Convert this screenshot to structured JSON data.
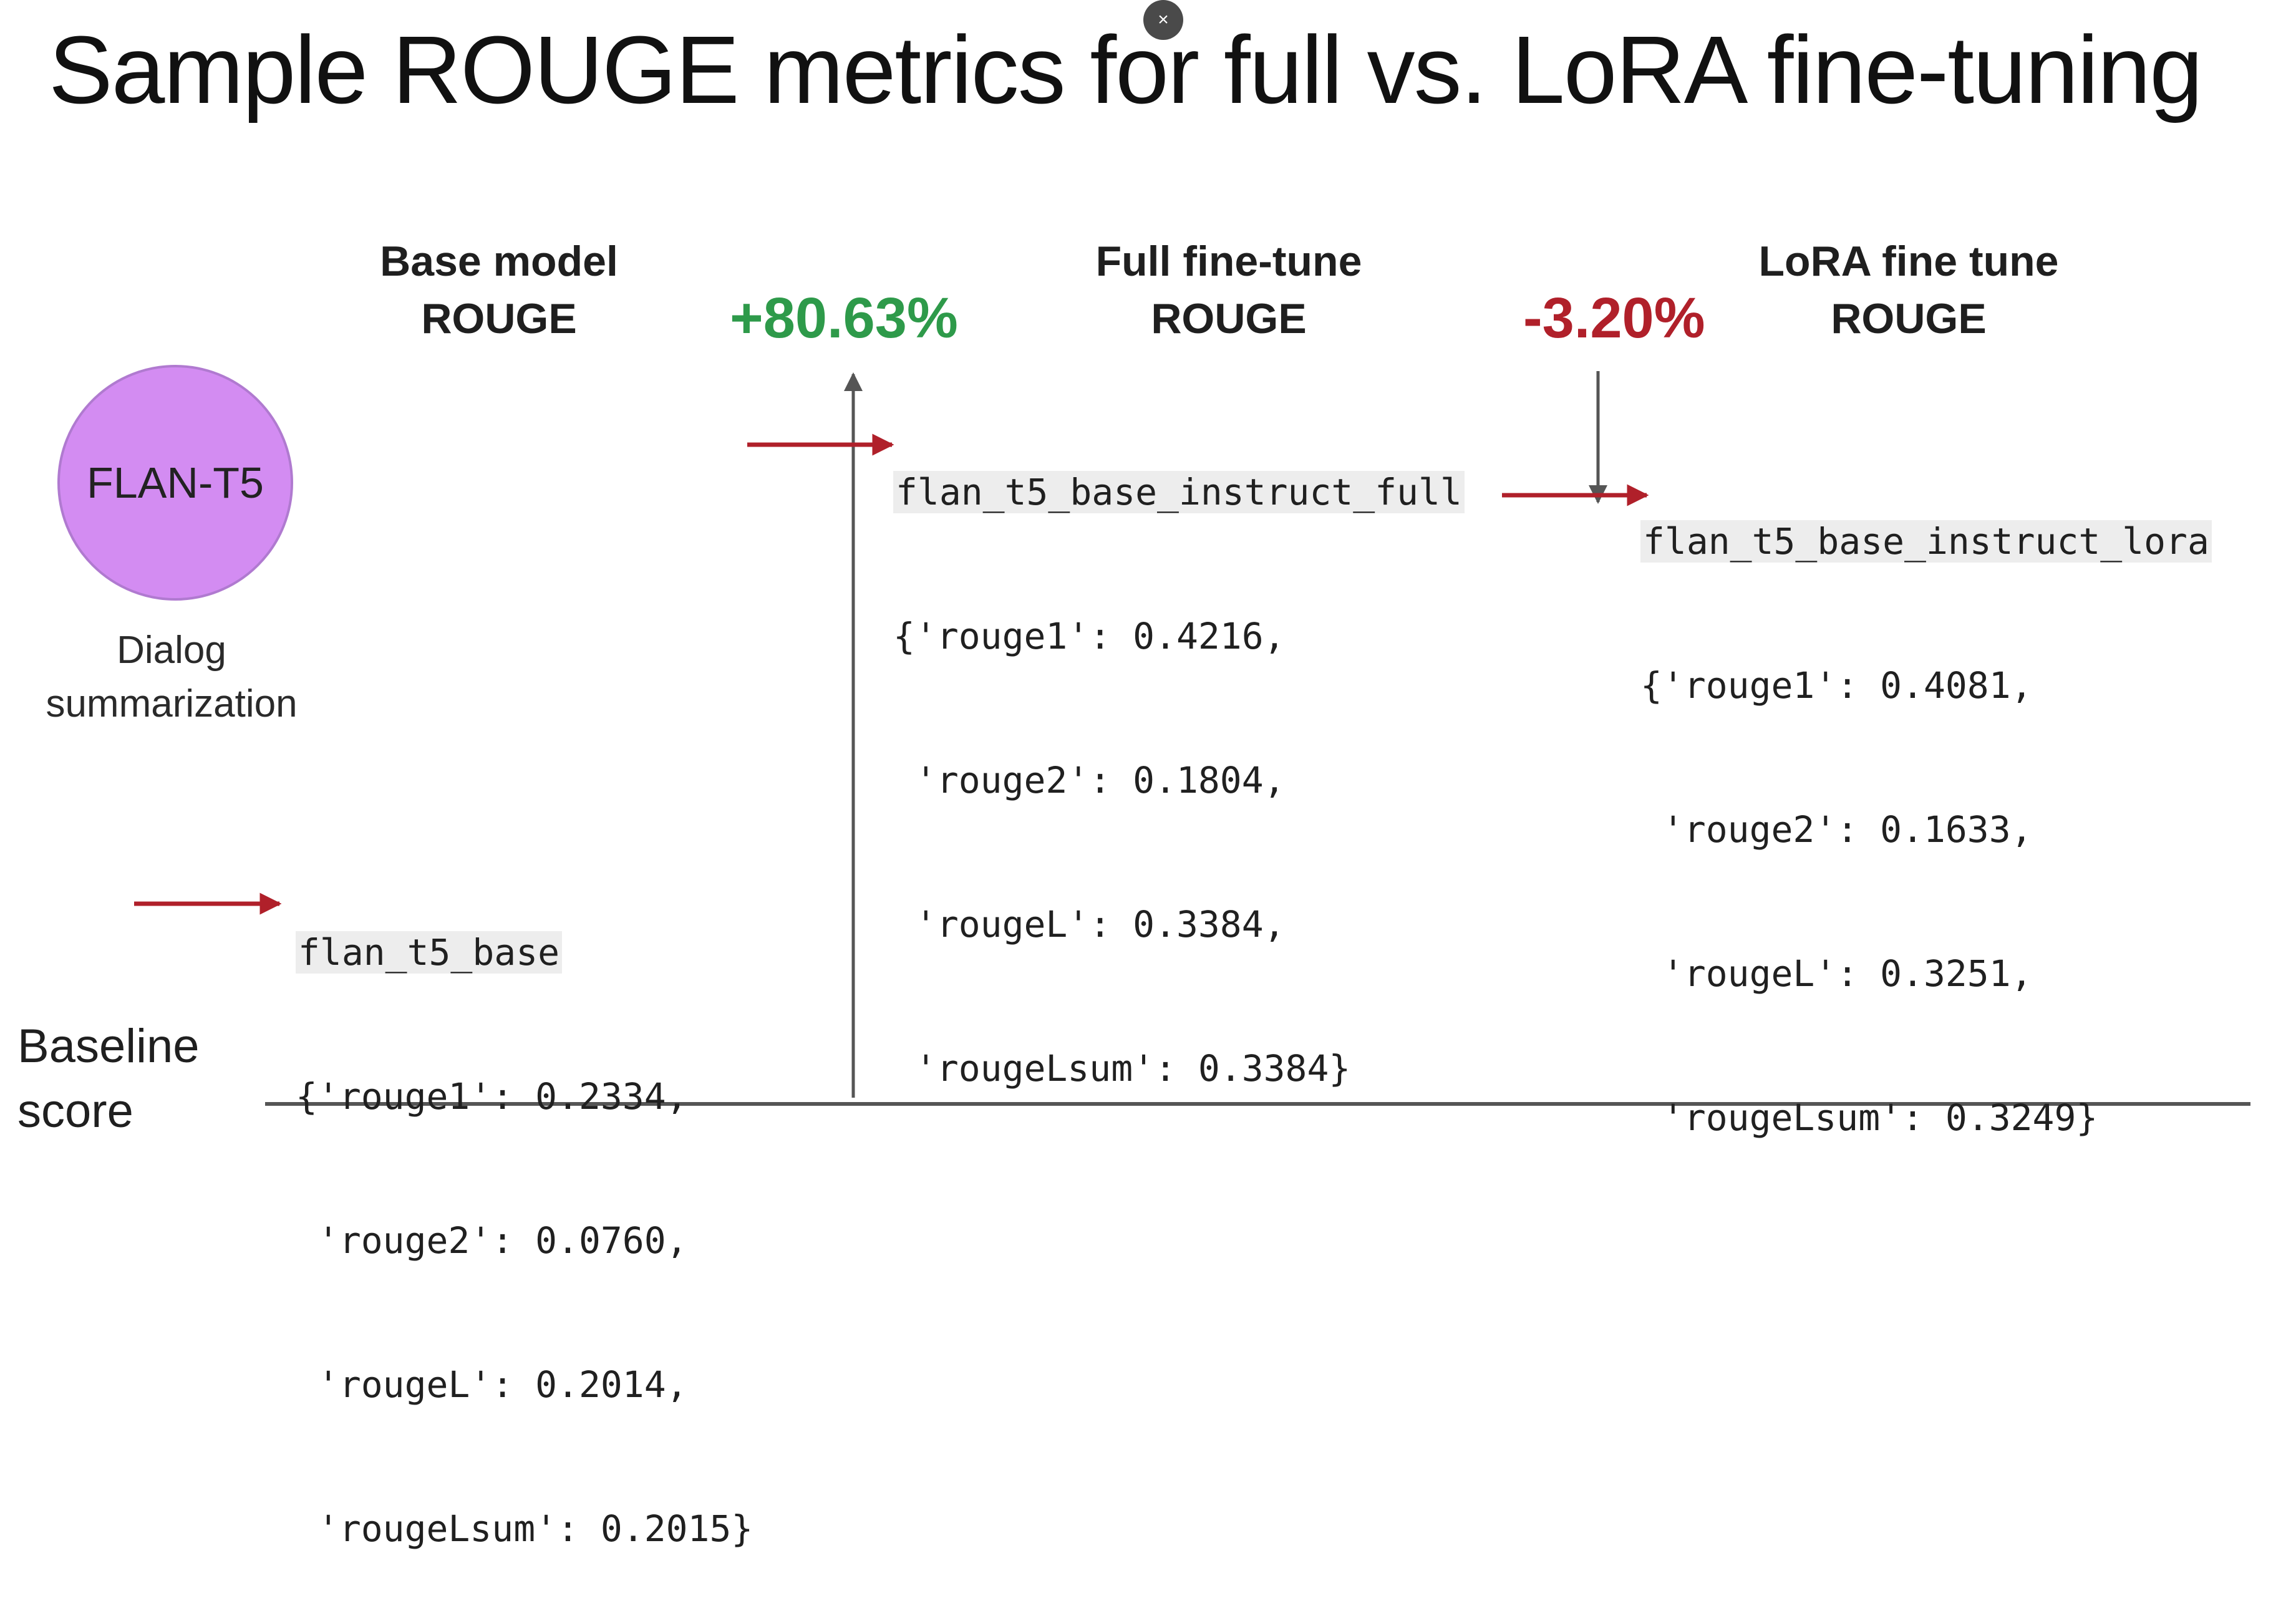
{
  "title": "Sample ROUGE metrics for full vs. LoRA fine-tuning",
  "close_button": {
    "glyph": "×"
  },
  "model": {
    "name": "FLAN-T5",
    "task": [
      "Dialog",
      "summarization"
    ],
    "color": "#d38cf2"
  },
  "columns": [
    {
      "heading": [
        "Base model",
        "ROUGE"
      ]
    },
    {
      "heading": [
        "Full fine-tune",
        "ROUGE"
      ]
    },
    {
      "heading": [
        "LoRA  fine tune",
        "ROUGE"
      ]
    }
  ],
  "changes": [
    {
      "label": "+80.63%",
      "color": "#2e9a4a"
    },
    {
      "label": "-3.20%",
      "color": "#b0202a"
    }
  ],
  "results": [
    {
      "model": "flan_t5_base",
      "lines": [
        "{'rouge1': 0.2334,",
        " 'rouge2': 0.0760,",
        " 'rougeL': 0.2014,",
        " 'rougeLsum': 0.2015}"
      ]
    },
    {
      "model": "flan_t5_base_instruct_full",
      "lines": [
        "{'rouge1': 0.4216,",
        " 'rouge2': 0.1804,",
        " 'rougeL': 0.3384,",
        " 'rougeLsum': 0.3384}"
      ]
    },
    {
      "model": "flan_t5_base_instruct_lora",
      "lines": [
        "{'rouge1': 0.4081,",
        " 'rouge2': 0.1633,",
        " 'rougeL': 0.3251,",
        " 'rougeLsum': 0.3249}"
      ]
    }
  ],
  "baseline": [
    "Baseline",
    "score"
  ],
  "colors": {
    "pointer_arrow": "#b0202a",
    "axis": "#555555"
  }
}
